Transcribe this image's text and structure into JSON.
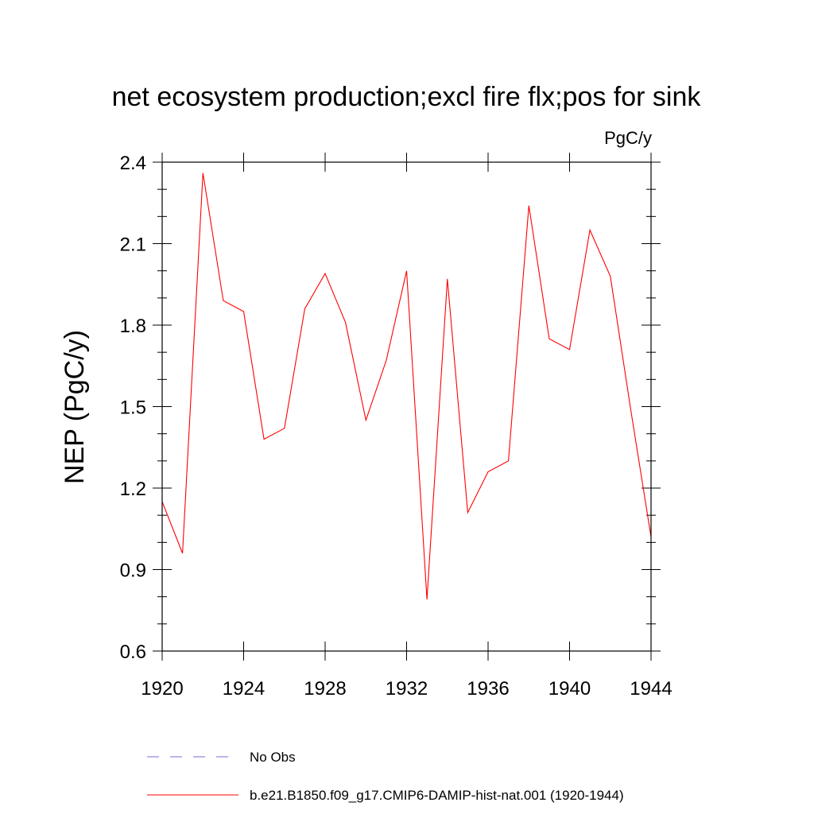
{
  "chart_data": {
    "type": "line",
    "title": "net ecosystem production;excl fire flx;pos for sink",
    "units": "PgC/y",
    "ylabel": "NEP  (PgC/y)",
    "xlabel": "",
    "xlim": [
      1920,
      1944
    ],
    "ylim": [
      0.6,
      2.4
    ],
    "x_ticks": [
      1920,
      1924,
      1928,
      1932,
      1936,
      1940,
      1944
    ],
    "x_tick_labels": [
      "1920",
      "1924",
      "1928",
      "1932",
      "1936",
      "1940",
      "1944"
    ],
    "y_ticks": [
      0.6,
      0.9,
      1.2,
      1.5,
      1.8,
      2.1,
      2.4
    ],
    "y_tick_labels": [
      "0.6",
      "0.9",
      "1.2",
      "1.5",
      "1.8",
      "2.1",
      "2.4"
    ],
    "grid": false,
    "legend_position": "bottom",
    "series": [
      {
        "name": "b.e21.B1850.f09_g17.CMIP6-DAMIP-hist-nat.001 (1920-1944)",
        "color": "#ff0000",
        "style": "solid",
        "x": [
          1920,
          1921,
          1922,
          1923,
          1924,
          1925,
          1926,
          1927,
          1928,
          1929,
          1930,
          1931,
          1932,
          1933,
          1934,
          1935,
          1936,
          1937,
          1938,
          1939,
          1940,
          1941,
          1942,
          1943,
          1944
        ],
        "y": [
          1.15,
          0.96,
          2.36,
          1.89,
          1.85,
          1.38,
          1.42,
          1.86,
          1.99,
          1.81,
          1.45,
          1.67,
          2.0,
          0.79,
          1.97,
          1.11,
          1.26,
          1.3,
          2.24,
          1.75,
          1.71,
          2.15,
          1.98,
          1.49,
          1.02
        ]
      }
    ],
    "legend": [
      {
        "label": "No Obs",
        "color": "#7b68d6",
        "style": "dashed"
      },
      {
        "label": "b.e21.B1850.f09_g17.CMIP6-DAMIP-hist-nat.001 (1920-1944)",
        "color": "#ff0000",
        "style": "solid"
      }
    ]
  }
}
